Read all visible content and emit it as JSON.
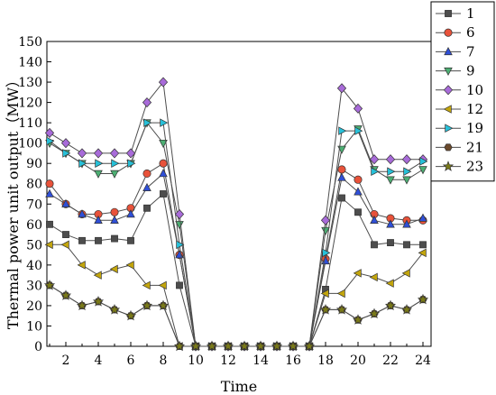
{
  "chart_data": {
    "type": "line",
    "xlabel": "Time",
    "ylabel": "Thermal power unit output（MW）",
    "xlim": [
      1,
      24
    ],
    "ylim": [
      0,
      150
    ],
    "xticks": [
      2,
      4,
      6,
      8,
      10,
      12,
      14,
      16,
      18,
      20,
      22,
      24
    ],
    "yticks": [
      0,
      10,
      20,
      30,
      40,
      50,
      60,
      70,
      80,
      90,
      100,
      110,
      120,
      130,
      140,
      150
    ],
    "grid": false,
    "legend_position": "right",
    "x": [
      1,
      2,
      3,
      4,
      5,
      6,
      7,
      8,
      9,
      10,
      11,
      12,
      13,
      14,
      15,
      16,
      17,
      18,
      19,
      20,
      21,
      22,
      23,
      24
    ],
    "series": [
      {
        "name": "1",
        "color": "#4d4d4d",
        "marker": "square",
        "values": [
          60,
          55,
          52,
          52,
          53,
          52,
          68,
          75,
          30,
          0,
          0,
          0,
          0,
          0,
          0,
          0,
          0,
          28,
          73,
          66,
          50,
          51,
          50,
          50
        ]
      },
      {
        "name": "6",
        "color": "#e8523a",
        "marker": "circle",
        "values": [
          80,
          70,
          65,
          65,
          66,
          68,
          85,
          90,
          45,
          0,
          0,
          0,
          0,
          0,
          0,
          0,
          0,
          43,
          87,
          82,
          65,
          63,
          62,
          62
        ]
      },
      {
        "name": "7",
        "color": "#2f4fd8",
        "marker": "triangle-up",
        "values": [
          75,
          70,
          65,
          62,
          62,
          65,
          78,
          85,
          45,
          0,
          0,
          0,
          0,
          0,
          0,
          0,
          0,
          42,
          83,
          76,
          62,
          60,
          60,
          63
        ]
      },
      {
        "name": "9",
        "color": "#4caf73",
        "marker": "triangle-down",
        "values": [
          100,
          95,
          90,
          85,
          85,
          90,
          110,
          100,
          60,
          0,
          0,
          0,
          0,
          0,
          0,
          0,
          0,
          57,
          97,
          107,
          87,
          82,
          82,
          87
        ]
      },
      {
        "name": "10",
        "color": "#a86bd9",
        "marker": "diamond",
        "values": [
          105,
          100,
          95,
          95,
          95,
          95,
          120,
          130,
          65,
          0,
          0,
          0,
          0,
          0,
          0,
          0,
          0,
          62,
          127,
          117,
          92,
          92,
          92,
          92
        ]
      },
      {
        "name": "12",
        "color": "#c2a50d",
        "marker": "triangle-left",
        "values": [
          50,
          50,
          40,
          35,
          38,
          40,
          30,
          30,
          0,
          0,
          0,
          0,
          0,
          0,
          0,
          0,
          0,
          26,
          26,
          36,
          34,
          31,
          36,
          46
        ]
      },
      {
        "name": "19",
        "color": "#27c0d8",
        "marker": "triangle-right",
        "values": [
          101,
          95,
          90,
          90,
          90,
          90,
          110,
          110,
          50,
          0,
          0,
          0,
          0,
          0,
          0,
          0,
          0,
          46,
          106,
          106,
          86,
          86,
          86,
          91
        ]
      },
      {
        "name": "21",
        "color": "#6b4a2c",
        "marker": "hexagon",
        "values": [
          30,
          25,
          20,
          22,
          18,
          15,
          20,
          20,
          0,
          0,
          0,
          0,
          0,
          0,
          0,
          0,
          0,
          18,
          18,
          13,
          16,
          20,
          18,
          23
        ]
      },
      {
        "name": "23",
        "color": "#7a7a18",
        "marker": "star",
        "values": [
          30,
          25,
          20,
          22,
          18,
          15,
          20,
          20,
          0,
          0,
          0,
          0,
          0,
          0,
          0,
          0,
          0,
          18,
          18,
          13,
          16,
          20,
          18,
          23
        ]
      }
    ]
  }
}
